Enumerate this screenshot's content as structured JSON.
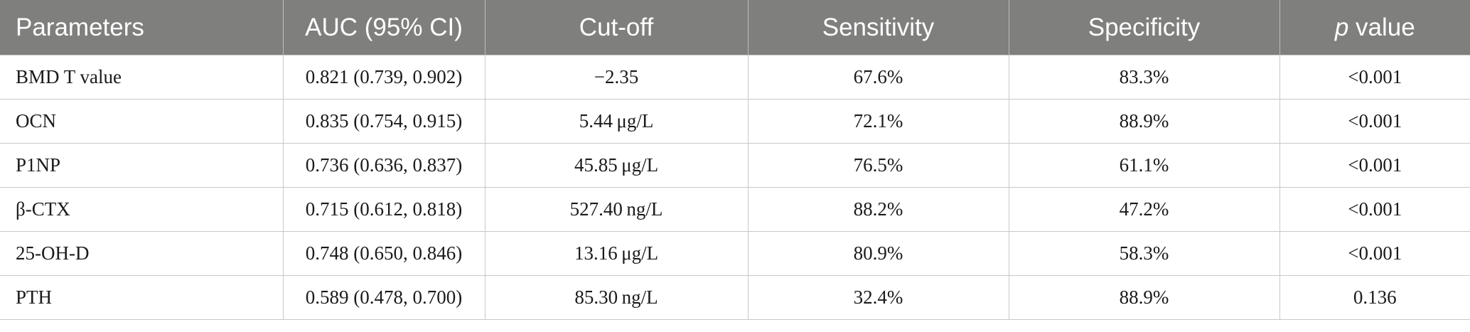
{
  "table": {
    "headers": {
      "parameters": "Parameters",
      "auc": "AUC (95% CI)",
      "cutoff": "Cut-off",
      "sensitivity": "Sensitivity",
      "specificity": "Specificity",
      "p_italic": "p",
      "p_rest": " value"
    },
    "rows": [
      {
        "parameter": "BMD T value",
        "auc": "0.821 (0.739, 0.902)",
        "cutoff": "−2.35",
        "sensitivity": "67.6%",
        "specificity": "83.3%",
        "p": "<0.001"
      },
      {
        "parameter": "OCN",
        "auc": "0.835 (0.754, 0.915)",
        "cutoff": "5.44 μg/L",
        "sensitivity": "72.1%",
        "specificity": "88.9%",
        "p": "<0.001"
      },
      {
        "parameter": "P1NP",
        "auc": "0.736 (0.636, 0.837)",
        "cutoff": "45.85 μg/L",
        "sensitivity": "76.5%",
        "specificity": "61.1%",
        "p": "<0.001"
      },
      {
        "parameter": "β-CTX",
        "auc": "0.715 (0.612, 0.818)",
        "cutoff": "527.40 ng/L",
        "sensitivity": "88.2%",
        "specificity": "47.2%",
        "p": "<0.001"
      },
      {
        "parameter": "25-OH-D",
        "auc": "0.748 (0.650, 0.846)",
        "cutoff": "13.16 μg/L",
        "sensitivity": "80.9%",
        "specificity": "58.3%",
        "p": "<0.001"
      },
      {
        "parameter": "PTH",
        "auc": "0.589 (0.478, 0.700)",
        "cutoff": "85.30 ng/L",
        "sensitivity": "32.4%",
        "specificity": "88.9%",
        "p": "0.136"
      }
    ]
  },
  "colors": {
    "header_bg": "#7f7f7e",
    "header_text": "#ffffff",
    "grid": "#c8c8c8"
  }
}
